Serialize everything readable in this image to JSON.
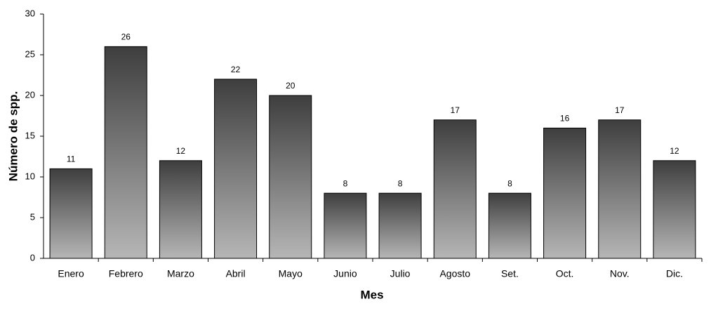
{
  "chart_data": {
    "type": "bar",
    "xlabel": "Mes",
    "ylabel": "Número de spp.",
    "categories": [
      "Enero",
      "Febrero",
      "Marzo",
      "Abril",
      "Mayo",
      "Junio",
      "Julio",
      "Agosto",
      "Set.",
      "Oct.",
      "Nov.",
      "Dic."
    ],
    "values": [
      11,
      26,
      12,
      22,
      20,
      8,
      8,
      17,
      8,
      16,
      17,
      12
    ],
    "gradient": [
      "#3e3e3e",
      "#b6b6b6"
    ],
    "ylim": [
      0,
      30
    ],
    "yticks": [
      0,
      5,
      10,
      15,
      20,
      25,
      30
    ],
    "grid": false
  }
}
